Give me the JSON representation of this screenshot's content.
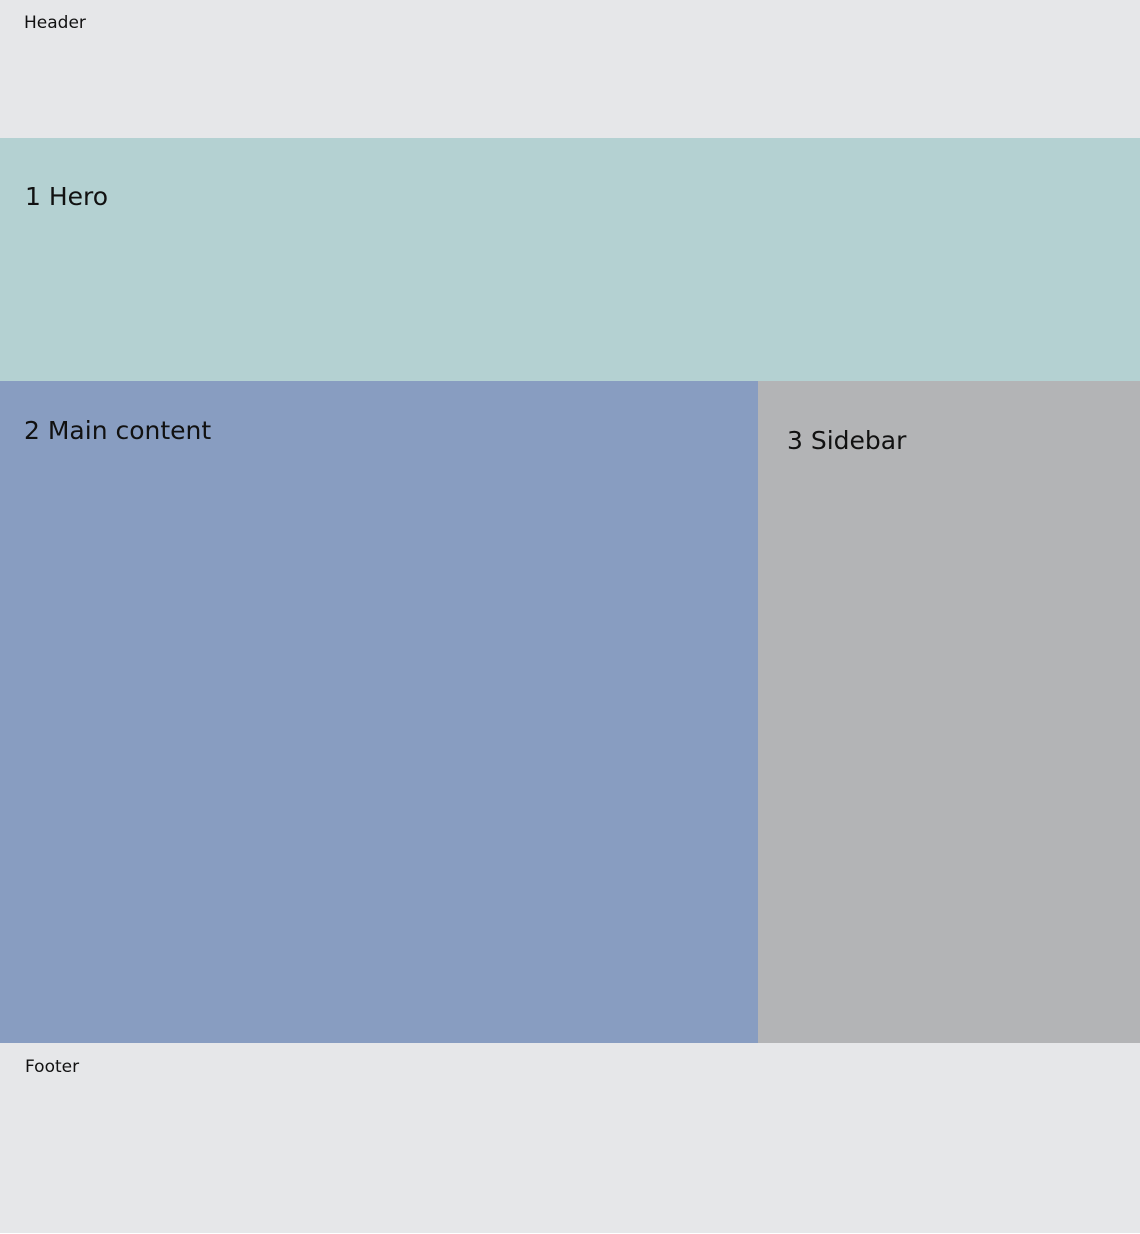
{
  "colors": {
    "header_bg": "#e6e7e9",
    "hero_bg": "#b4d1d2",
    "main_bg": "#889dc1",
    "sidebar_bg": "#b3b4b6",
    "footer_bg": "#e6e7e9"
  },
  "layout": {
    "header": {
      "label": "Header"
    },
    "hero": {
      "label": "1 Hero"
    },
    "main": {
      "label": "2 Main content"
    },
    "sidebar": {
      "label": "3 Sidebar"
    },
    "footer": {
      "label": "Footer"
    }
  }
}
